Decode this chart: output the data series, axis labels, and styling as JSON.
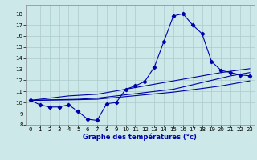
{
  "title": "Graphe des températures (°c)",
  "background_color": "#cce8e8",
  "grid_color": "#aacccc",
  "line_color": "#0000aa",
  "xlim": [
    -0.5,
    23.5
  ],
  "ylim": [
    8.0,
    18.8
  ],
  "xticks": [
    0,
    1,
    2,
    3,
    4,
    5,
    6,
    7,
    8,
    9,
    10,
    11,
    12,
    13,
    14,
    15,
    16,
    17,
    18,
    19,
    20,
    21,
    22,
    23
  ],
  "yticks": [
    8,
    9,
    10,
    11,
    12,
    13,
    14,
    15,
    16,
    17,
    18
  ],
  "hours": [
    0,
    1,
    2,
    3,
    4,
    5,
    6,
    7,
    8,
    9,
    10,
    11,
    12,
    13,
    14,
    15,
    16,
    17,
    18,
    19,
    20,
    21,
    22,
    23
  ],
  "temp_main": [
    10.2,
    9.8,
    9.6,
    9.6,
    9.8,
    9.2,
    8.5,
    8.4,
    9.9,
    10.0,
    11.2,
    11.5,
    11.9,
    13.2,
    15.5,
    17.8,
    18.0,
    17.0,
    16.2,
    13.7,
    12.9,
    12.7,
    12.5,
    12.4
  ],
  "line_avg": [
    10.2,
    10.22,
    10.24,
    10.26,
    10.28,
    10.3,
    10.35,
    10.4,
    10.5,
    10.6,
    10.7,
    10.8,
    10.9,
    11.0,
    11.1,
    11.2,
    11.4,
    11.6,
    11.8,
    12.0,
    12.2,
    12.4,
    12.55,
    12.7
  ],
  "line_min": [
    10.2,
    10.2,
    10.22,
    10.23,
    10.24,
    10.26,
    10.28,
    10.3,
    10.38,
    10.46,
    10.54,
    10.62,
    10.7,
    10.78,
    10.86,
    10.94,
    11.05,
    11.16,
    11.27,
    11.38,
    11.5,
    11.65,
    11.8,
    11.95
  ],
  "line_max": [
    10.2,
    10.3,
    10.4,
    10.5,
    10.6,
    10.65,
    10.7,
    10.75,
    10.9,
    11.05,
    11.2,
    11.35,
    11.5,
    11.65,
    11.8,
    11.95,
    12.1,
    12.25,
    12.4,
    12.55,
    12.7,
    12.82,
    12.94,
    13.05
  ]
}
